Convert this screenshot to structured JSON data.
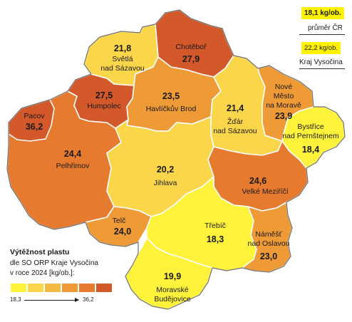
{
  "colors": {
    "c1": "#fff23a",
    "c2": "#fbd64a",
    "c3": "#f5b942",
    "c4": "#ee9a36",
    "c5": "#e67a2e",
    "c6": "#d3582a",
    "box": "#fff200"
  },
  "summary": {
    "cr_value": "18,1 kg/ob.",
    "cr_label": "průměr ČR",
    "kraj_value": "22,2 kg/ob.",
    "kraj_label": "Kraj Vysočina"
  },
  "legend": {
    "title": "Výtěžnost plastu",
    "line1": "dle SO ORP Kraje Vysočina",
    "line2": "v roce 2024 [kg/ob.]:",
    "min": "18,3",
    "max": "36,2",
    "classes": [
      "#fff23a",
      "#fbd64a",
      "#f5b942",
      "#ee9a36",
      "#e67a2e",
      "#d3582a"
    ]
  },
  "regions": {
    "svetla": {
      "name": "Světlá nad Sázavou",
      "line1": "Světlá",
      "line2": "nad Sázavou",
      "value": "21,8",
      "fill": "#fbd64a"
    },
    "chotebor": {
      "name": "Chotěboř",
      "value": "27,9",
      "fill": "#d3582a"
    },
    "humpolec": {
      "name": "Humpolec",
      "value": "27,5",
      "fill": "#d3582a"
    },
    "havlickuv": {
      "name": "Havlíčkův Brod",
      "value": "23,5",
      "fill": "#ee9a36"
    },
    "zdar": {
      "name": "Žďár nad Sázavou",
      "line1": "Žďár",
      "line2": "nad Sázavou",
      "value": "21,4",
      "fill": "#fbd64a"
    },
    "nmnm": {
      "name": "Nové Město na Moravě",
      "line1": "Nové",
      "line2": "Město",
      "line3": "na Moravě",
      "value": "23,9",
      "fill": "#ee9a36"
    },
    "pacov": {
      "name": "Pacov",
      "value": "36,2",
      "fill": "#d3582a"
    },
    "pelhrimov": {
      "name": "Pelhřimov",
      "value": "24,4",
      "fill": "#e67a2e"
    },
    "jihlava": {
      "name": "Jihlava",
      "value": "20,2",
      "fill": "#fbd64a"
    },
    "bystrice": {
      "name": "Bystřice nad Pernštejnem",
      "line1": "Bystřice",
      "line2": "nad Pernštejnem",
      "value": "18,4",
      "fill": "#fff23a"
    },
    "velke": {
      "name": "Velké Meziříčí",
      "value": "24,6",
      "fill": "#e67a2e"
    },
    "telc": {
      "name": "Telč",
      "value": "24,0",
      "fill": "#ee9a36"
    },
    "trebic": {
      "name": "Třebíč",
      "value": "18,3",
      "fill": "#fff23a"
    },
    "namest": {
      "name": "Náměšť nad Oslavou",
      "line1": "Náměšť",
      "line2": "nad Oslavou",
      "value": "23,0",
      "fill": "#ee9a36"
    },
    "mb": {
      "name": "Moravské Budějovice",
      "line1": "Moravské",
      "line2": "Budějovice",
      "value": "19,9",
      "fill": "#fff23a"
    }
  }
}
